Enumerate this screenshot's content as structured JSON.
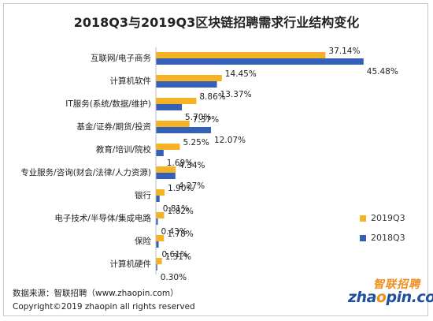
{
  "title": "2018Q3与2019Q3区块链招聘需求行业结构变化",
  "colors": {
    "series_2019": "#f5b223",
    "series_2018": "#3560b8"
  },
  "legend": {
    "s2019": "2019Q3",
    "s2018": "2018Q3"
  },
  "footer": {
    "source": "数据来源：智联招聘（www.zhaopin.com）",
    "copyright": "Copyright©2019 zhaopin all rights reserved"
  },
  "logo": {
    "cn": "智联招聘",
    "en_pre": "zha",
    "en_o": "o",
    "en_post": "pin.com"
  },
  "chart_data": {
    "type": "bar",
    "orientation": "horizontal",
    "title": "2018Q3与2019Q3区块链招聘需求行业结构变化",
    "categories": [
      "互联网/电子商务",
      "计算机软件",
      "IT服务(系统/数据/维护)",
      "基金/证券/期货/投资",
      "教育/培训/院校",
      "专业服务/咨询(财会/法律/人力资源)",
      "银行",
      "电子技术/半导体/集成电路",
      "保险",
      "计算机硬件"
    ],
    "series": [
      {
        "name": "2019Q3",
        "values": [
          37.14,
          14.45,
          8.86,
          7.37,
          5.25,
          4.34,
          1.9,
          1.82,
          1.78,
          1.31
        ]
      },
      {
        "name": "2018Q3",
        "values": [
          45.48,
          13.37,
          5.7,
          12.07,
          1.69,
          4.27,
          0.81,
          0.43,
          0.61,
          0.3
        ]
      }
    ],
    "labels": [
      [
        "37.14%",
        "14.45%",
        "8.86%",
        "7.37%",
        "5.25%",
        "4.34%",
        "1.90%",
        "1.82%",
        "1.78%",
        "1.31%"
      ],
      [
        "45.48%",
        "13.37%",
        "5.70%",
        "12.07%",
        "1.69%",
        "4.27%",
        "0.81%",
        "0.43%",
        "0.61%",
        "0.30%"
      ]
    ],
    "xlim": [
      0,
      50
    ],
    "legend_position": "bottom-right"
  }
}
